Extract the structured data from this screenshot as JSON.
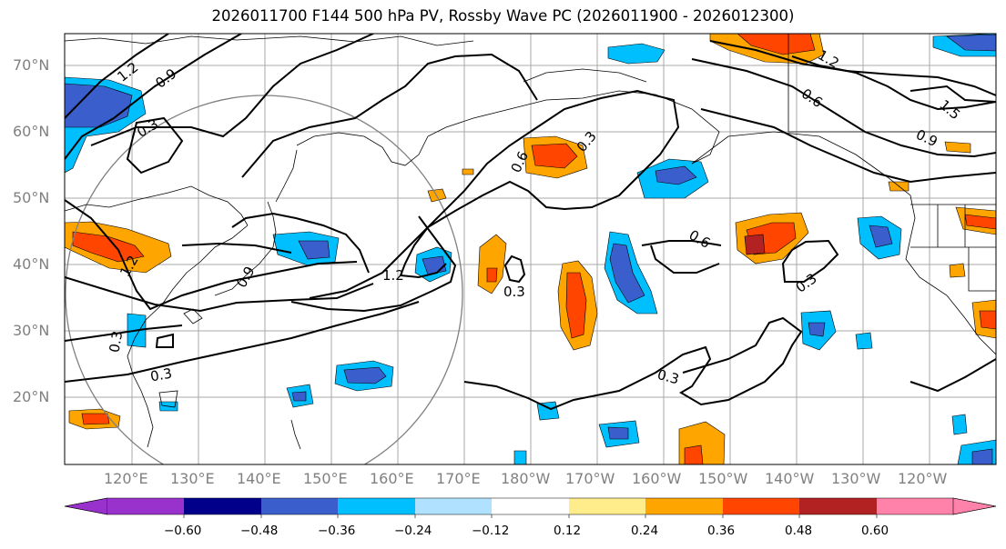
{
  "title": "2026011700 F144 500 hPa PV, Rossby Wave PC (2026011900 - 2026012300)",
  "latitude_labels": [
    "70°N",
    "60°N",
    "50°N",
    "40°N",
    "30°N",
    "20°N"
  ],
  "longitude_labels": [
    "120°E",
    "130°E",
    "140°E",
    "150°E",
    "160°E",
    "170°E",
    "180°W",
    "170°W",
    "160°W",
    "150°W",
    "140°W",
    "130°W",
    "120°W"
  ],
  "contour_labels": [
    "1.2",
    "0.9",
    "0.3",
    "1.2",
    "0.9",
    "0.3",
    "0.3",
    "1.2",
    "0.6",
    "0.3",
    "0.3",
    "0.6",
    "0.3",
    "0.3",
    "0.6",
    "1.2",
    "1.5",
    "0.9"
  ],
  "colorbar": {
    "ticks": [
      "−0.60",
      "−0.48",
      "−0.36",
      "−0.24",
      "−0.12",
      "0.12",
      "0.24",
      "0.36",
      "0.48",
      "0.60"
    ],
    "colors": [
      "#9932cc",
      "#00008b",
      "#3a5fcd",
      "#00bfff",
      "#b0e2ff",
      "#ffffff",
      "#ffec8b",
      "#ffa500",
      "#ff4500",
      "#b22222",
      "#ff82ab"
    ]
  }
}
